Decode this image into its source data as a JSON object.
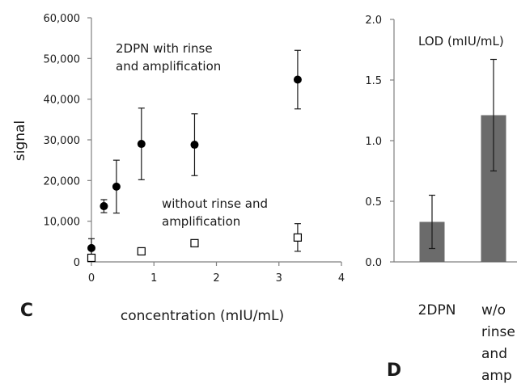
{
  "chart_data": [
    {
      "type": "scatter",
      "panel": "C",
      "xlabel": "concentration (mIU/mL)",
      "ylabel": "signal",
      "xlim": [
        0,
        4
      ],
      "ylim": [
        0,
        60000
      ],
      "x_ticks": [
        "0",
        "1",
        "2",
        "3",
        "4"
      ],
      "y_ticks": [
        "0",
        "10,000",
        "20,000",
        "30,000",
        "40,000",
        "50,000",
        "60,000"
      ],
      "grid": false,
      "series": [
        {
          "name": "2DPN with rinse and amplification",
          "label_lines": [
            "2DPN with rinse",
            "and amplification"
          ],
          "marker": "filled-circle",
          "color": "#000000",
          "points": [
            {
              "x": 0,
              "y": 3400,
              "err": 2300
            },
            {
              "x": 0.2,
              "y": 13700,
              "err": 1600
            },
            {
              "x": 0.4,
              "y": 18500,
              "err": 6500
            },
            {
              "x": 0.8,
              "y": 29000,
              "err": 8800
            },
            {
              "x": 1.65,
              "y": 28800,
              "err": 7600
            },
            {
              "x": 3.3,
              "y": 44800,
              "err": 7200
            }
          ]
        },
        {
          "name": "without rinse and amplification",
          "label_lines": [
            "without rinse and",
            "amplification"
          ],
          "marker": "open-square",
          "color": "#000000",
          "points": [
            {
              "x": 0,
              "y": 1000,
              "err": 600
            },
            {
              "x": 0.8,
              "y": 2600,
              "err": 700
            },
            {
              "x": 1.65,
              "y": 4600,
              "err": 800
            },
            {
              "x": 3.3,
              "y": 6000,
              "err": 3400
            }
          ]
        }
      ]
    },
    {
      "type": "bar",
      "panel": "D",
      "title": "LOD (mIU/mL)",
      "ylim": [
        0,
        2.0
      ],
      "y_ticks": [
        "0.0",
        "0.5",
        "1.0",
        "1.5",
        "2.0"
      ],
      "grid": false,
      "bar_color": "#6b6b6b",
      "categories": [
        {
          "label_lines": [
            "2DPN"
          ]
        },
        {
          "label_lines": [
            "w/o",
            "rinse",
            "and",
            "amp"
          ]
        }
      ],
      "values": [
        0.33,
        1.21
      ],
      "errors": [
        0.22,
        0.46
      ]
    }
  ]
}
